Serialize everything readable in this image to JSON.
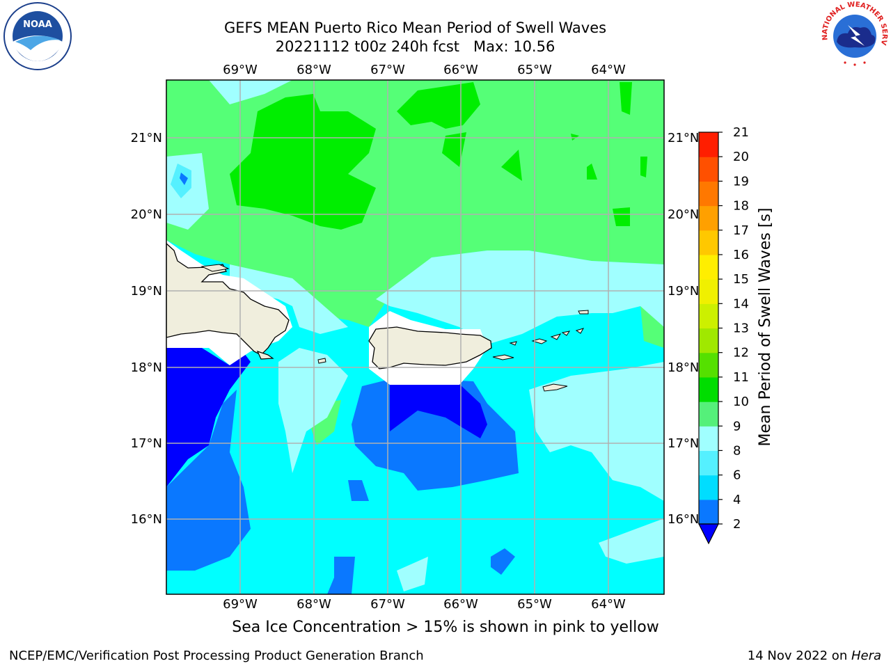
{
  "header": {
    "title_line1": "GEFS MEAN Puerto Rico Mean Period of Swell Waves",
    "run": "20221112 t00z 240h fcst",
    "max_label": "Max: 10.56"
  },
  "logos": {
    "left": {
      "name": "NOAA",
      "ring_text": "NATIONAL OCEANIC AND ATMOSPHERIC ADMINISTRATION · U.S. DEPARTMENT OF COMMERCE"
    },
    "right": {
      "name": "NATIONAL WEATHER SERVICE"
    }
  },
  "map": {
    "lon_labels": [
      "69°W",
      "68°W",
      "67°W",
      "66°W",
      "65°W",
      "64°W"
    ],
    "lat_labels": [
      "21°N",
      "20°N",
      "19°N",
      "18°N",
      "17°N",
      "16°N"
    ]
  },
  "colorbar": {
    "label": "Mean Period of Swell Waves [s]",
    "ticks": [
      "2",
      "4",
      "6",
      "8",
      "9",
      "10",
      "11",
      "12",
      "13",
      "14",
      "15",
      "16",
      "17",
      "18",
      "19",
      "20",
      "21"
    ],
    "colors": [
      "#0a78ff",
      "#00ddff",
      "#55f0ff",
      "#a0ffff",
      "#55f07a",
      "#00dd00",
      "#55e000",
      "#a0e800",
      "#ccf000",
      "#f0f000",
      "#ffee00",
      "#ffc800",
      "#ffa000",
      "#ff7800",
      "#ff5000",
      "#ff1e00"
    ],
    "under_color": "#0000ff"
  },
  "footer": {
    "note": "Sea Ice Concentration > 15% is shown in pink to yellow",
    "credit": "NCEP/EMC/Verification Post Processing Product Generation Branch",
    "date": "14 Nov 2022 on ",
    "host": "Hera"
  }
}
